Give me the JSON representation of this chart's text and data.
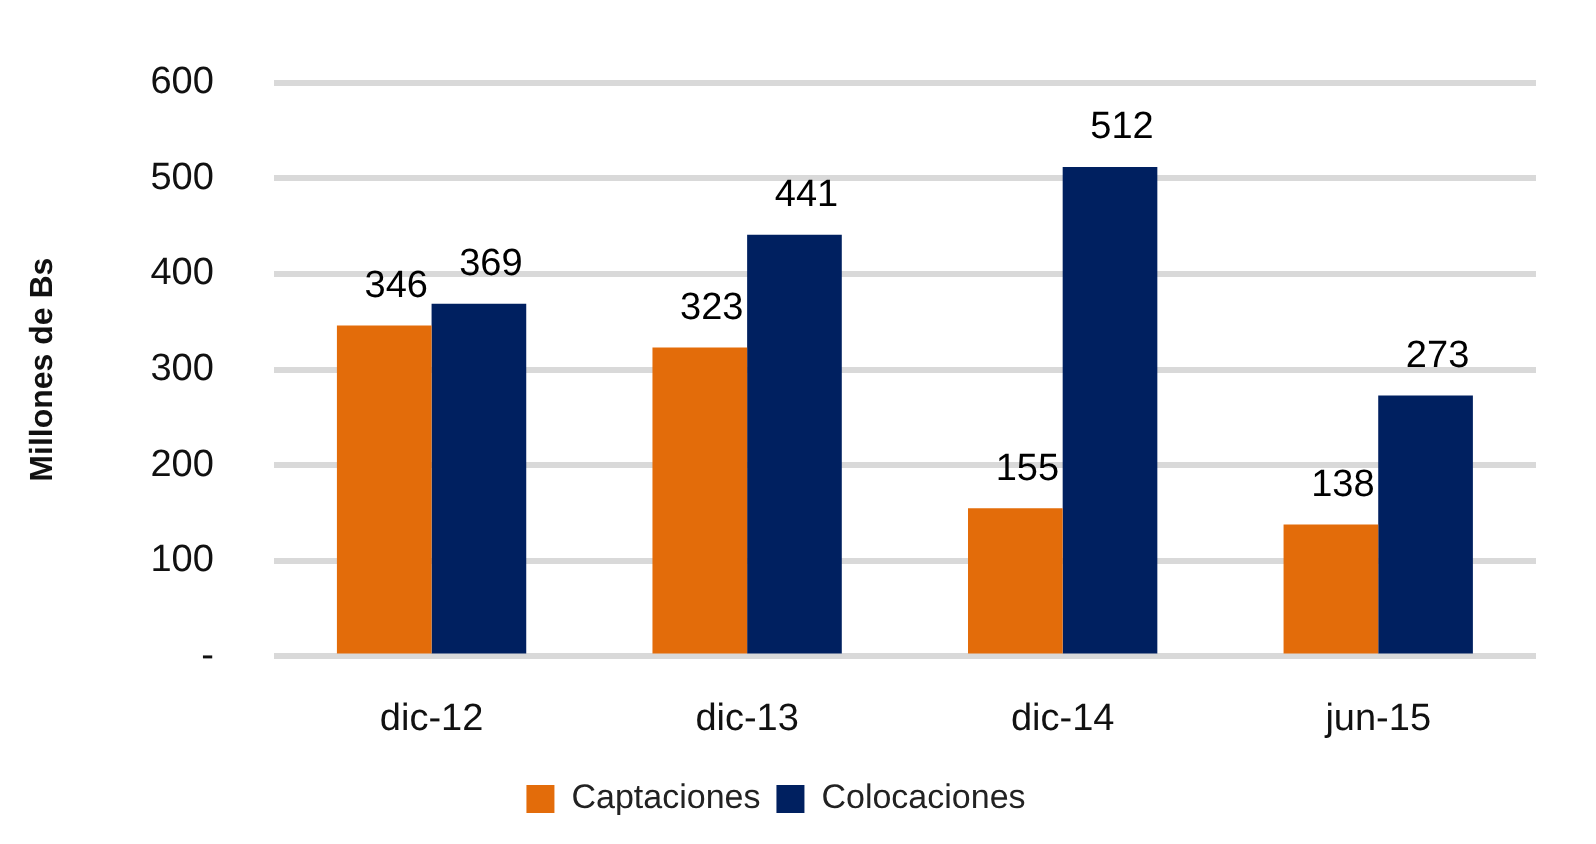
{
  "chart_data": {
    "type": "bar",
    "ylabel": "Millones de Bs",
    "categories": [
      "dic-12",
      "dic-13",
      "dic-14",
      "jun-15"
    ],
    "series": [
      {
        "name": "Captaciones",
        "color": "#e36c0a",
        "values": [
          346,
          323,
          155,
          138
        ]
      },
      {
        "name": "Colocaciones",
        "color": "#002060",
        "values": [
          369,
          441,
          512,
          273
        ]
      }
    ],
    "ylim": [
      0,
      600
    ],
    "yticks": [
      {
        "value": 0,
        "label": "-"
      },
      100,
      200,
      300,
      400,
      500,
      600
    ],
    "grid": "y",
    "legend": "bottom",
    "data_labels": true
  }
}
